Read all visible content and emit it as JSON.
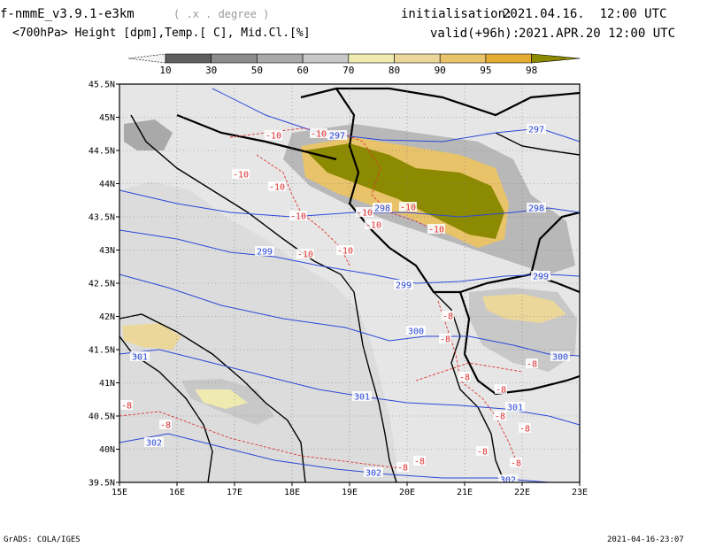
{
  "header": {
    "model": "f-nmmE_v3.9.1-e3km",
    "projection": "( .x . degree )",
    "subtitle": "<700hPa> Height [dpm],Temp.[ C], Mid.Cl.[%]",
    "init_label": "initialisation:",
    "init_value": "2021.04.16.  12:00 UTC",
    "valid_label": "valid(+96h):",
    "valid_value": "2021.APR.20 12:00 UTC"
  },
  "colorbar": {
    "labels": [
      "10",
      "30",
      "50",
      "60",
      "70",
      "80",
      "90",
      "95",
      "98"
    ],
    "colors": [
      "#f2f2f2",
      "#5f5f5f",
      "#8c8c8c",
      "#a9a9a9",
      "#c8c8c8",
      "#eeeab0",
      "#ecd79a",
      "#e8c36a",
      "#e3ad33",
      "#8c8a00"
    ]
  },
  "axes": {
    "lat_labels": [
      "45.5N",
      "45N",
      "44.5N",
      "44N",
      "43.5N",
      "43N",
      "42.5N",
      "42N",
      "41.5N",
      "41N",
      "40.5N",
      "40N",
      "39.5N"
    ],
    "lon_labels": [
      "15E",
      "16E",
      "17E",
      "18E",
      "19E",
      "20E",
      "21E",
      "22E",
      "23E"
    ]
  },
  "contours": {
    "height_labels": [
      "297",
      "297",
      "298",
      "298",
      "299",
      "299",
      "299",
      "300",
      "300",
      "301",
      "301",
      "301",
      "302",
      "302",
      "302"
    ],
    "temp_labels": [
      "-10",
      "-10",
      "-10",
      "-10",
      "-10",
      "-10",
      "-10",
      "-10",
      "-10",
      "-10",
      "-10",
      "-8",
      "-8",
      "-8",
      "-8",
      "-8",
      "-8",
      "-8",
      "-8",
      "-8",
      "-8",
      "-8",
      "-8",
      "-8"
    ]
  },
  "footer": {
    "left": "GrADS: COLA/IGES",
    "right": "2021-04-16-23:07"
  },
  "colors": {
    "height_contour": "#2b48d8",
    "temp_contour": "#e03030",
    "land": "#e6e6e6"
  }
}
